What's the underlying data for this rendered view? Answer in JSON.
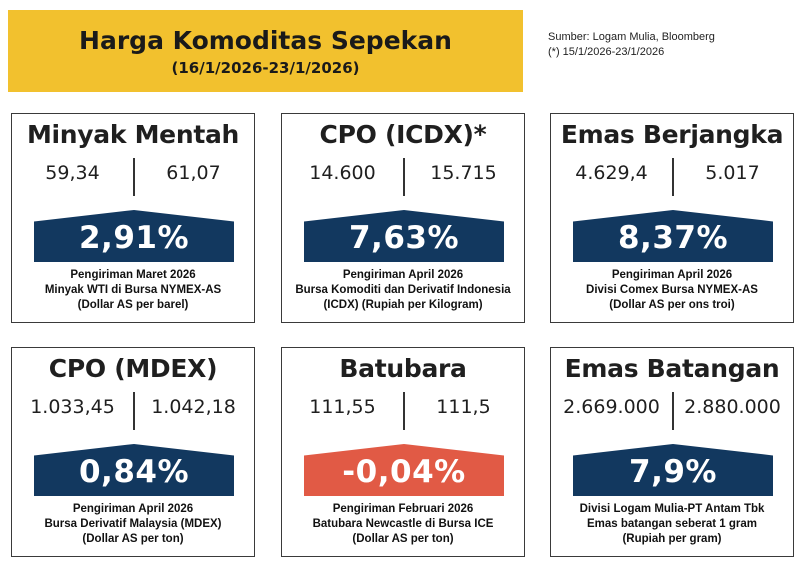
{
  "header": {
    "title": "Harga Komoditas Sepekan",
    "date_range": "(16/1/2026-23/1/2026)"
  },
  "source": {
    "line1": "Sumber: Logam Mulia, Bloomberg",
    "line2": "(*) 15/1/2026-23/1/2026"
  },
  "colors": {
    "header": "#f2c12e",
    "up": "#12385f",
    "down": "#e15a45"
  },
  "cards": [
    {
      "title": "Minyak Mentah",
      "price_prev": "59,34",
      "price_curr": "61,07",
      "change": "2,91%",
      "direction": "up",
      "notes": [
        "Pengiriman Maret 2026",
        "Minyak WTI di Bursa NYMEX-AS",
        "(Dollar AS per barel)"
      ]
    },
    {
      "title": "CPO (ICDX)*",
      "price_prev": "14.600",
      "price_curr": "15.715",
      "change": "7,63%",
      "direction": "up",
      "notes": [
        "Pengiriman April 2026",
        "Bursa Komoditi dan Derivatif Indonesia",
        "(ICDX) (Rupiah per Kilogram)"
      ]
    },
    {
      "title": "Emas Berjangka",
      "price_prev": "4.629,4",
      "price_curr": "5.017",
      "change": "8,37%",
      "direction": "up",
      "notes": [
        "Pengiriman April 2026",
        "Divisi Comex Bursa NYMEX-AS",
        "(Dollar AS per ons troi)"
      ]
    },
    {
      "title": "CPO (MDEX)",
      "price_prev": "1.033,45",
      "price_curr": "1.042,18",
      "change": "0,84%",
      "direction": "up",
      "notes": [
        "Pengiriman April 2026",
        "Bursa Derivatif Malaysia (MDEX)",
        "(Dollar AS per ton)"
      ]
    },
    {
      "title": "Batubara",
      "price_prev": "111,55",
      "price_curr": "111,5",
      "change": "-0,04%",
      "direction": "down",
      "notes": [
        "Pengiriman Februari 2026",
        "Batubara Newcastle di Bursa ICE",
        "(Dollar AS per ton)"
      ]
    },
    {
      "title": "Emas Batangan",
      "price_prev": "2.669.000",
      "price_curr": "2.880.000",
      "change": "7,9%",
      "direction": "up",
      "notes": [
        "Divisi Logam Mulia-PT Antam Tbk",
        "Emas batangan seberat 1 gram",
        "(Rupiah per gram)"
      ]
    }
  ]
}
